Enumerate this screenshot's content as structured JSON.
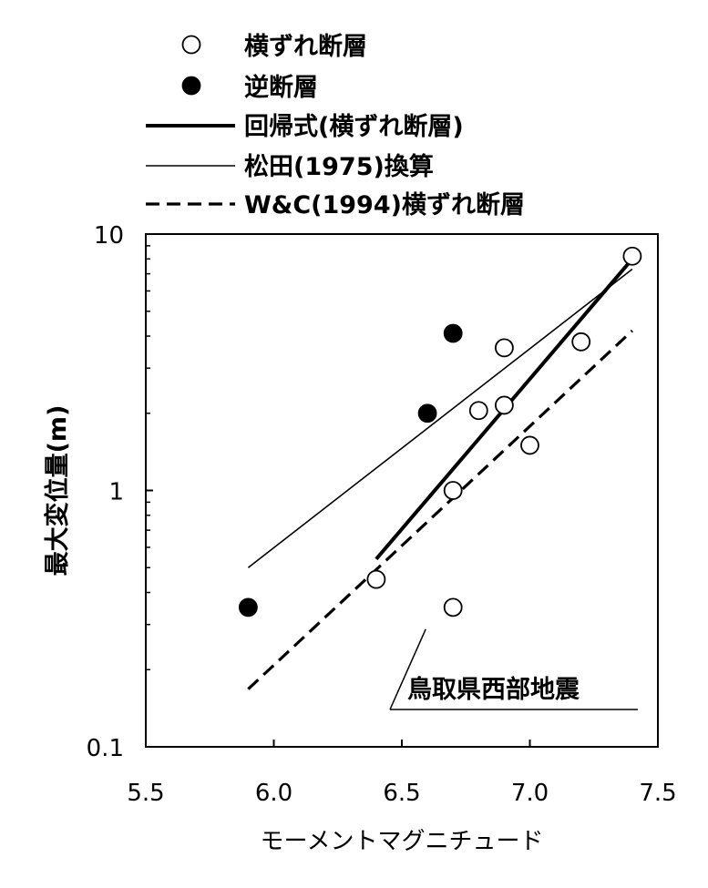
{
  "chart_data": {
    "type": "scatter",
    "xlabel": "モーメントマグニチュード",
    "ylabel": "最大変位量(m)",
    "xlim": [
      5.5,
      7.5
    ],
    "ylim": [
      0.1,
      10
    ],
    "yscale": "log",
    "grid": false,
    "legend_position": "top",
    "x_ticks": [
      "5.5",
      "6.0",
      "6.5",
      "7.0",
      "7.5"
    ],
    "y_ticks": [
      "0.1",
      "1",
      "10"
    ],
    "annotation": "鳥取県西部地震",
    "annotated_point": {
      "x": 6.7,
      "y": 0.35
    },
    "series": [
      {
        "name": "横ずれ断層",
        "kind": "points",
        "marker": "open-circle",
        "x": [
          6.4,
          6.7,
          6.7,
          6.8,
          6.9,
          6.9,
          7.0,
          7.2,
          7.4
        ],
        "y": [
          0.45,
          0.35,
          1.0,
          2.05,
          2.15,
          3.6,
          1.5,
          3.8,
          8.2
        ]
      },
      {
        "name": "逆断層",
        "kind": "points",
        "marker": "filled-circle",
        "x": [
          5.9,
          6.6,
          6.7
        ],
        "y": [
          0.35,
          2.0,
          4.1
        ]
      },
      {
        "name": "回帰式(横ずれ断層)",
        "kind": "line",
        "style": "thick",
        "x": [
          6.4,
          7.4
        ],
        "y": [
          0.54,
          8.0
        ]
      },
      {
        "name": "松田(1975)換算",
        "kind": "line",
        "style": "thin",
        "x": [
          5.9,
          7.4
        ],
        "y": [
          0.5,
          7.3
        ]
      },
      {
        "name": "W&C(1994)横ずれ断層",
        "kind": "line",
        "style": "dashed",
        "x": [
          5.9,
          7.4
        ],
        "y": [
          0.168,
          4.2
        ]
      }
    ]
  }
}
